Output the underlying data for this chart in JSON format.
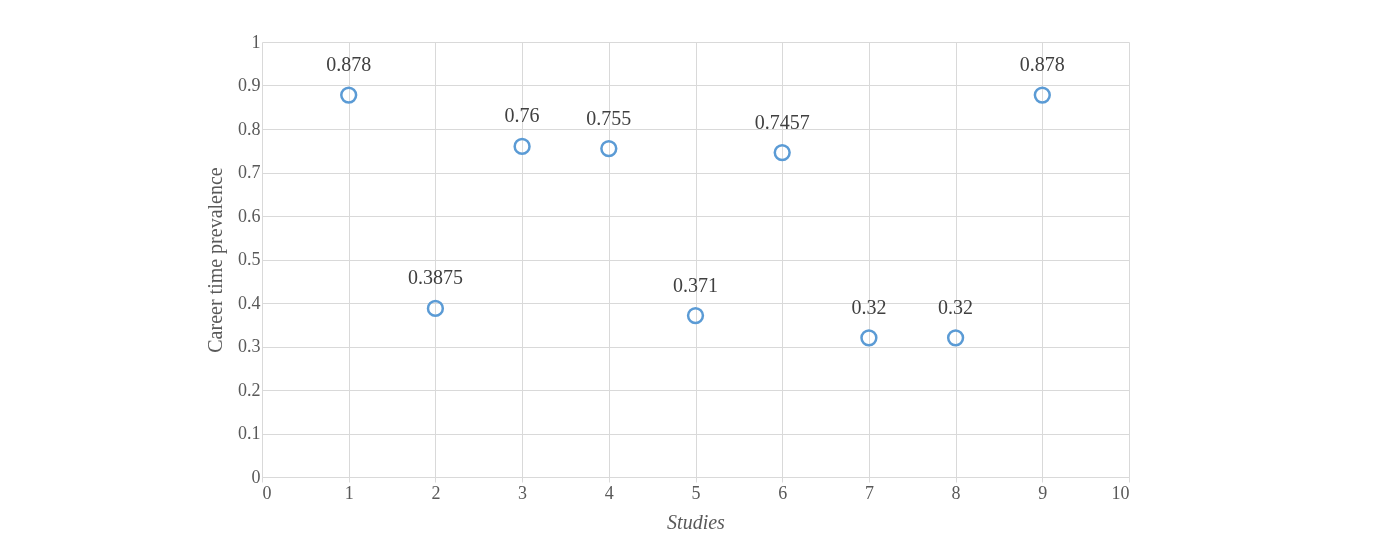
{
  "chart_data": {
    "type": "scatter",
    "xlabel": "Studies",
    "ylabel": "Career time prevalence",
    "x": [
      1,
      2,
      3,
      4,
      5,
      6,
      7,
      8,
      9
    ],
    "series": [
      {
        "color": "#5b9bd5",
        "values": [
          0.878,
          0.3875,
          0.76,
          0.755,
          0.371,
          0.7457,
          0.32,
          0.32,
          0.878
        ]
      }
    ],
    "xlim": [
      0,
      10
    ],
    "xticks": [
      0,
      1,
      2,
      3,
      4,
      5,
      6,
      7,
      8,
      9,
      10
    ],
    "ylim": [
      0,
      1
    ],
    "yticks": [
      0,
      0.1,
      0.2,
      0.3,
      0.4,
      0.5,
      0.6,
      0.7,
      0.8,
      0.9,
      1
    ],
    "grid": true,
    "marker": "circle",
    "data_labels": true
  }
}
